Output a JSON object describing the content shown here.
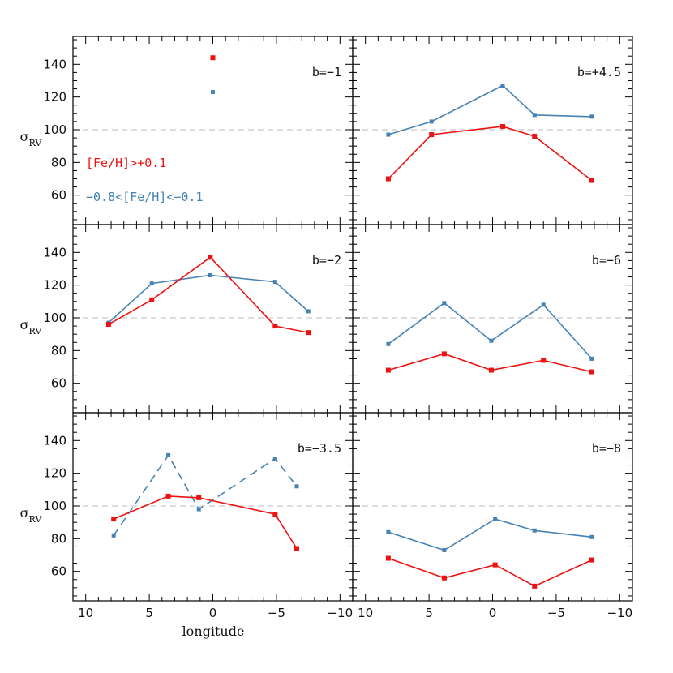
{
  "chart_data": {
    "type": "line",
    "xlabel": "longitude",
    "ylabel": "σ",
    "ylabel_sub": "RV",
    "xlim": [
      11,
      -11
    ],
    "ylim": [
      42,
      157
    ],
    "xticks": [
      10,
      5,
      0,
      -5,
      -10
    ],
    "xtick_labels": [
      "10",
      "5",
      "0",
      "−5",
      "−10"
    ],
    "yticks": [
      60,
      80,
      100,
      120,
      140
    ],
    "reference_line": 100,
    "colors": {
      "metal_rich": "#ee1111",
      "metal_poor": "#4682b4",
      "reference": "#bbbbbb"
    },
    "legend": {
      "metal_rich_label": "[Fe/H]>+0.1",
      "metal_poor_label": "−0.8<[Fe/H]<−0.1"
    },
    "panels": [
      {
        "label": "b=−1",
        "series": [
          {
            "name": "metal_rich",
            "x": [
              0
            ],
            "y": [
              144
            ],
            "dashed": false
          },
          {
            "name": "metal_poor",
            "x": [
              0
            ],
            "y": [
              123
            ],
            "dashed": false
          }
        ]
      },
      {
        "label": "b=+4.5",
        "series": [
          {
            "name": "metal_rich",
            "x": [
              8.2,
              4.8,
              -0.8,
              -3.3,
              -7.8
            ],
            "y": [
              70,
              97,
              102,
              96,
              69
            ],
            "dashed": false
          },
          {
            "name": "metal_poor",
            "x": [
              8.2,
              4.8,
              -0.8,
              -3.3,
              -7.8
            ],
            "y": [
              97,
              105,
              127,
              109,
              108
            ],
            "dashed": false
          }
        ]
      },
      {
        "label": "b=−2",
        "series": [
          {
            "name": "metal_rich",
            "x": [
              8.2,
              4.8,
              0.2,
              -4.9,
              -7.5
            ],
            "y": [
              96,
              111,
              137,
              95,
              91
            ],
            "dashed": false
          },
          {
            "name": "metal_poor",
            "x": [
              8.2,
              4.8,
              0.2,
              -4.9,
              -7.5
            ],
            "y": [
              97,
              121,
              126,
              122,
              104
            ],
            "dashed": false
          }
        ]
      },
      {
        "label": "b=−6",
        "series": [
          {
            "name": "metal_rich",
            "x": [
              8.2,
              3.8,
              0.1,
              -4.0,
              -7.8
            ],
            "y": [
              68,
              78,
              68,
              74,
              67
            ],
            "dashed": false
          },
          {
            "name": "metal_poor",
            "x": [
              8.2,
              3.8,
              0.1,
              -4.0,
              -7.8
            ],
            "y": [
              84,
              109,
              86,
              108,
              75
            ],
            "dashed": false
          }
        ]
      },
      {
        "label": "b=−3.5",
        "series": [
          {
            "name": "metal_rich",
            "x": [
              7.8,
              3.5,
              1.1,
              -4.9,
              -6.6
            ],
            "y": [
              92,
              106,
              105,
              95,
              74
            ],
            "dashed": false
          },
          {
            "name": "metal_poor",
            "x": [
              7.8,
              3.5,
              1.1,
              -4.9,
              -6.6
            ],
            "y": [
              82,
              131,
              98,
              129,
              112
            ],
            "dashed": true
          }
        ]
      },
      {
        "label": "b=−8",
        "series": [
          {
            "name": "metal_rich",
            "x": [
              8.2,
              3.8,
              -0.2,
              -3.3,
              -7.8
            ],
            "y": [
              68,
              56,
              64,
              51,
              67
            ],
            "dashed": false
          },
          {
            "name": "metal_poor",
            "x": [
              8.2,
              3.8,
              -0.2,
              -3.3,
              -7.8
            ],
            "y": [
              84,
              73,
              92,
              85,
              81
            ],
            "dashed": false
          }
        ]
      }
    ]
  }
}
